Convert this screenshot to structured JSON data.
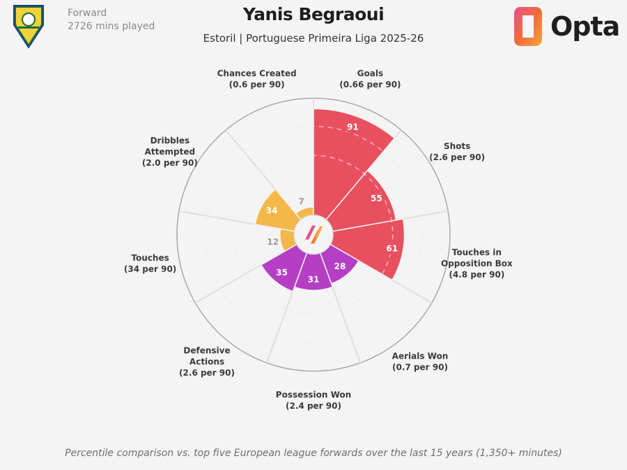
{
  "player": {
    "position": "Forward",
    "minutes": "2726 mins played"
  },
  "header": {
    "title": "Yanis Begraoui",
    "subtitle": "Estoril | Portuguese Primeira Liga 2025-26"
  },
  "brand": {
    "name": "Opta"
  },
  "footer": "Percentile comparison vs. top five European league forwards over the last 15 years (1,350+ minutes)",
  "colors": {
    "attacking": "#e8505f",
    "possession": "#f4b74a",
    "defending": "#b43fc4",
    "low_value_text": "#9a9a9a",
    "grid": "#dddddd"
  },
  "chart_data": {
    "type": "radar",
    "title": "Yanis Begraoui",
    "subtitle": "Estoril | Portuguese Primeira Liga 2025-26",
    "value_type": "percentile",
    "range": [
      0,
      100
    ],
    "metrics": [
      {
        "label_lines": [
          "Goals"
        ],
        "per90": "(0.66 per 90)",
        "percentile": 91,
        "group": "attacking"
      },
      {
        "label_lines": [
          "Shots"
        ],
        "per90": "(2.6 per 90)",
        "percentile": 55,
        "group": "attacking"
      },
      {
        "label_lines": [
          "Touches in",
          "Opposition Box"
        ],
        "per90": "(4.8 per 90)",
        "percentile": 61,
        "group": "attacking"
      },
      {
        "label_lines": [
          "Aerials Won"
        ],
        "per90": "(0.7 per 90)",
        "percentile": 28,
        "group": "defending"
      },
      {
        "label_lines": [
          "Possession Won"
        ],
        "per90": "(2.4 per 90)",
        "percentile": 31,
        "group": "defending"
      },
      {
        "label_lines": [
          "Defensive",
          "Actions"
        ],
        "per90": "(2.6 per 90)",
        "percentile": 35,
        "group": "defending"
      },
      {
        "label_lines": [
          "Touches"
        ],
        "per90": "(34 per 90)",
        "percentile": 12,
        "group": "possession"
      },
      {
        "label_lines": [
          "Dribbles",
          "Attempted"
        ],
        "per90": "(2.0 per 90)",
        "percentile": 34,
        "group": "possession"
      },
      {
        "label_lines": [
          "Chances Created"
        ],
        "per90": "(0.6 per 90)",
        "percentile": 7,
        "group": "possession"
      }
    ]
  }
}
